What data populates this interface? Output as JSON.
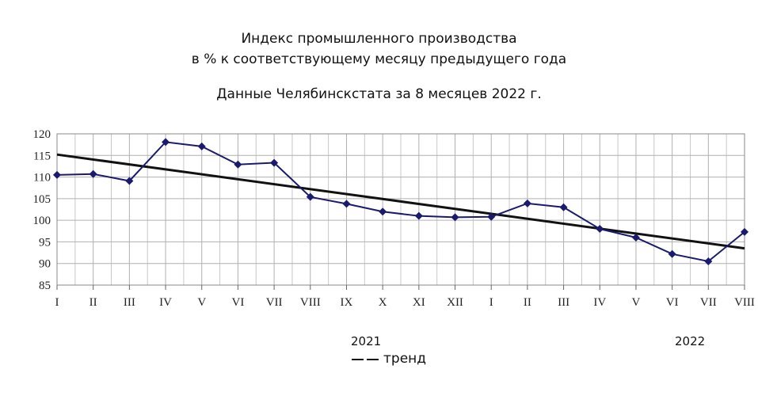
{
  "chart_data": {
    "type": "line",
    "title": "Индекс промышленного производства",
    "title_line2": "в % к соответствующему месяцу предыдущего года",
    "subtitle": "Данные Челябинскстата за 8 месяцев 2022 г.",
    "categories": [
      "I",
      "II",
      "III",
      "IV",
      "V",
      "VI",
      "VII",
      "VIII",
      "IX",
      "X",
      "XI",
      "XII",
      "I",
      "II",
      "III",
      "IV",
      "V",
      "VI",
      "VII",
      "VIII"
    ],
    "category_groups": [
      {
        "label": "2021"
      },
      {
        "label": "2022"
      }
    ],
    "series": [
      {
        "values": [
          110.5,
          110.7,
          109.1,
          118.1,
          117.1,
          112.9,
          113.3,
          105.4,
          103.8,
          102.0,
          101.0,
          100.7,
          100.8,
          103.9,
          103.0,
          98.0,
          96.0,
          92.2,
          90.5,
          97.3
        ],
        "color": "#1a1a6e",
        "marker": "diamond"
      }
    ],
    "trend": {
      "name": "тренд",
      "start": 115.2,
      "end": 93.5,
      "color": "#111111"
    },
    "ylim": [
      85,
      120
    ],
    "yticks": [
      85,
      90,
      95,
      100,
      105,
      110,
      115,
      120
    ],
    "grid": true,
    "legend_placement": "bottom-center"
  },
  "legend": {
    "trend_label": "тренд"
  }
}
